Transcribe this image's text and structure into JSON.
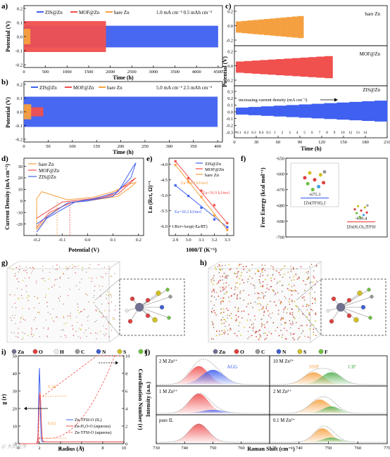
{
  "panel_labels": {
    "a": "a)",
    "b": "b)",
    "c": "c)",
    "d": "d)",
    "e": "e)",
    "f": "f)",
    "g": "g)",
    "h": "h)",
    "i": "i)",
    "j": "j)"
  },
  "colors": {
    "zis": "#3f60f0",
    "mof": "#f0504e",
    "bare": "#f5a040",
    "gray": "#999999"
  },
  "watermark": "@ 大同化学",
  "chart_data": [
    {
      "id": "a",
      "type": "line",
      "xlabel": "Time (h)",
      "ylabel": "Potential (V)",
      "xlim": [
        0,
        4600
      ],
      "ylim": [
        -0.2,
        0.2
      ],
      "xticks": [
        "0",
        "500",
        "1000",
        "1500",
        "2000",
        "2500",
        "3000",
        "3500",
        "4000",
        "4500"
      ],
      "yticks": [
        "-0.2",
        "-0.1",
        "0.0",
        "0.1",
        "0.2"
      ],
      "legend": [
        "ZIS@Zn",
        "MOF@Zn",
        "bare Zn"
      ],
      "annotation": "1.0 mA cm⁻²   0.5 mAh cm⁻²",
      "series": [
        {
          "name": "ZIS@Zn",
          "x_end": 4500,
          "amplitude": 0.07
        },
        {
          "name": "MOF@Zn",
          "x_end": 1900,
          "amplitude": 0.1
        },
        {
          "name": "bare Zn",
          "x_end": 150,
          "amplitude": 0.05
        }
      ]
    },
    {
      "id": "b",
      "type": "line",
      "xlabel": "Time (h)",
      "ylabel": "Potential (V)",
      "xlim": [
        0,
        410
      ],
      "ylim": [
        -0.2,
        0.2
      ],
      "xticks": [
        "0",
        "50",
        "100",
        "150",
        "200",
        "250",
        "300",
        "350",
        "400"
      ],
      "yticks": [
        "-0.2",
        "-0.1",
        "0.0",
        "0.1",
        "0.2"
      ],
      "legend": [
        "ZIS@Zn",
        "MOF@Zn",
        "bare Zn"
      ],
      "annotation": "5.0 mA cm⁻²   2.5 mAh cm⁻²",
      "series": [
        {
          "name": "ZIS@Zn",
          "x_end": 400,
          "amplitude": 0.1
        },
        {
          "name": "MOF@Zn",
          "x_end": 40,
          "amplitude": 0.03
        },
        {
          "name": "bare Zn",
          "x_end": 15,
          "amplitude": 0.05
        }
      ]
    },
    {
      "id": "c",
      "type": "line",
      "xlabel": "Time (h)",
      "ylabel": "Potential (V)",
      "xlim": [
        0,
        210
      ],
      "xticks": [
        "0",
        "30",
        "60",
        "90",
        "120",
        "150",
        "180",
        "210"
      ],
      "subplots": [
        {
          "label": "bare Zn",
          "yticks": [
            "-0.2",
            "0.0",
            "0.2"
          ],
          "x_end": 95
        },
        {
          "label": "MOF@Zn",
          "yticks": [
            "-0.2",
            "0.0",
            "0.2"
          ],
          "x_end": 135
        },
        {
          "label": "ZIS@Zn",
          "yticks": [
            "-0.3",
            "-0.2",
            "-0.1",
            "0.0",
            "0.1",
            "0.2",
            "0.3"
          ],
          "x_end": 210
        }
      ],
      "arrow_text": "increasing current density (mA cm⁻²)",
      "current_densities": [
        "0.1",
        "0.2",
        "0.3",
        "0.4",
        "0.5",
        "1",
        "2",
        "3",
        "4",
        "5",
        "6",
        "7",
        "8",
        "9",
        "10",
        "12",
        "13",
        "14"
      ]
    },
    {
      "id": "d",
      "type": "line",
      "xlabel": "Potential (V)",
      "ylabel": "Current Density (mA cm⁻²)",
      "xlim": [
        -0.25,
        0.22
      ],
      "ylim": [
        -30,
        37
      ],
      "xticks": [
        "-0.2",
        "-0.1",
        "0.0",
        "0.1",
        "0.2"
      ],
      "yticks": [
        "-20",
        "-10",
        "0",
        "10",
        "20",
        "30"
      ],
      "legend": [
        "bare Zn",
        "MOF@Zn",
        "ZIS@Zn"
      ]
    },
    {
      "id": "e",
      "type": "scatter",
      "xlabel": "1000/T (K⁻¹)",
      "ylabel": "Ln (Rct, Ω)⁻¹",
      "xlim": [
        2.85,
        3.35
      ],
      "ylim": [
        -6.3,
        -3.8
      ],
      "xticks": [
        "2.9",
        "3.0",
        "3.1",
        "3.2",
        "3.3"
      ],
      "yticks": [
        "-4.0",
        "-4.5",
        "-5.0",
        "-5.5",
        "-6.0"
      ],
      "legend": [
        "ZIS@Zn",
        "MOF@Zn",
        "bare Zn"
      ],
      "equation": "1/Rct=Aexp(-Ea/RT)",
      "fit_labels": {
        "bare": "Ea=44.4 kJ/mol",
        "mof": "Ea=36.9 kJ/mol",
        "zis": "Ea=30.2 kJ/mol"
      },
      "series": [
        {
          "name": "ZIS@Zn",
          "x": [
            2.9,
            3.0,
            3.1,
            3.2,
            3.3
          ],
          "y": [
            -4.68,
            -5.02,
            -5.4,
            -5.78,
            -6.03
          ]
        },
        {
          "name": "MOF@Zn",
          "x": [
            2.9,
            3.0,
            3.1,
            3.2,
            3.3
          ],
          "y": [
            -3.9,
            -4.45,
            -4.85,
            -5.32,
            -5.9
          ]
        },
        {
          "name": "bare Zn",
          "x": [
            2.9,
            3.0,
            3.1,
            3.2,
            3.3
          ],
          "y": [
            -4.02,
            -4.55,
            -5.05,
            -5.65,
            -6.12
          ]
        }
      ]
    },
    {
      "id": "f",
      "type": "scatter",
      "ylabel": "Free Energy (kcal mol⁻¹)",
      "ylim": [
        -700,
        -650
      ],
      "yticks": [
        "-650",
        "-660",
        "-670",
        "-680",
        "-690",
        "-700"
      ],
      "points": [
        {
          "value": -675.3,
          "label": "-675.3",
          "name": "[Zn(TFSI)₂]"
        },
        {
          "value": -690.4,
          "label": "-690.4",
          "name": "[Zn(H₂O)₅]TFSI"
        }
      ]
    },
    {
      "id": "i",
      "type": "line",
      "xlabel": "Radius (Å)",
      "ylabel": "g (r)",
      "y2label": "Coordination Number (r)",
      "xlim": [
        0,
        10
      ],
      "ylim": [
        0,
        50
      ],
      "y2lim": [
        0,
        10
      ],
      "xticks": [
        "0",
        "2",
        "4",
        "6",
        "8",
        "10"
      ],
      "yticks": [
        "0",
        "10",
        "20",
        "30",
        "40",
        "50"
      ],
      "y2ticks": [
        "0",
        "2",
        "4",
        "6",
        "8",
        "10"
      ],
      "legend": [
        "Zn-TFSI-O (IL)",
        "Zn-H₂O-O (aqueous)",
        "Zn-TFSI-O (aqueous)"
      ],
      "annotations": [
        "5.38",
        "0.62"
      ]
    },
    {
      "id": "j",
      "type": "area",
      "xlabel": "Raman Shift (cm⁻¹)",
      "ylabel": "Intensity (a.u.)",
      "xticks": [
        "730",
        "740",
        "750",
        "760",
        "740",
        "750",
        "760",
        "770"
      ],
      "left_panels": [
        "2 M Zn²⁺",
        "1 M Zn²⁺",
        "pure IL"
      ],
      "right_panels": [
        "10 M Zn²⁺",
        "2 M Zn²⁺",
        "0.1 M Zn²⁺"
      ],
      "peak_labels": [
        "AGG",
        "SSIP",
        "CIP"
      ]
    }
  ],
  "sims": {
    "g_legend": [
      "Zn",
      "O",
      "H",
      "C",
      "N",
      "S",
      "F"
    ],
    "h_legend": [
      "Zn",
      "O",
      "C",
      "N",
      "S",
      "F"
    ]
  }
}
